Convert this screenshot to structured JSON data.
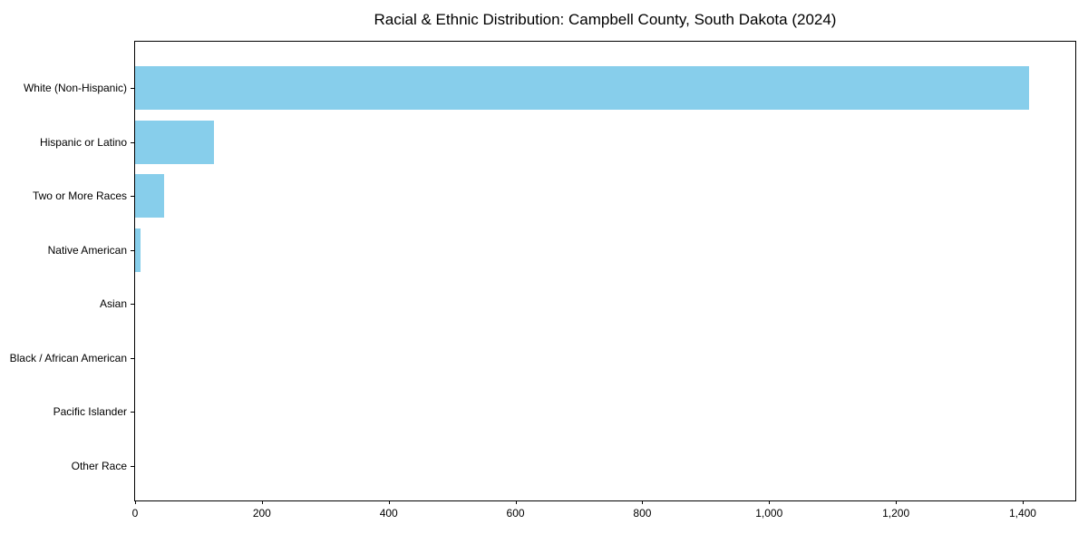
{
  "chart_data": {
    "type": "bar",
    "orientation": "horizontal",
    "title": "Racial & Ethnic Distribution: Campbell County, South Dakota (2024)",
    "categories": [
      "White (Non-Hispanic)",
      "Hispanic or Latino",
      "Two or More Races",
      "Native American",
      "Asian",
      "Black / African American",
      "Pacific Islander",
      "Other Race"
    ],
    "values": [
      1410,
      125,
      46,
      8,
      0,
      0,
      0,
      0
    ],
    "xlabel": "",
    "ylabel": "",
    "xlim": [
      0,
      1483
    ],
    "x_ticks": [
      0,
      200,
      400,
      600,
      800,
      1000,
      1200,
      1400
    ],
    "x_tick_labels": [
      "0",
      "200",
      "400",
      "600",
      "800",
      "1,000",
      "1,200",
      "1,400"
    ],
    "bar_color": "#87CEEB",
    "background_color": "#FFFFFF",
    "spine_color": "#000000",
    "grid": false,
    "legend": null
  }
}
